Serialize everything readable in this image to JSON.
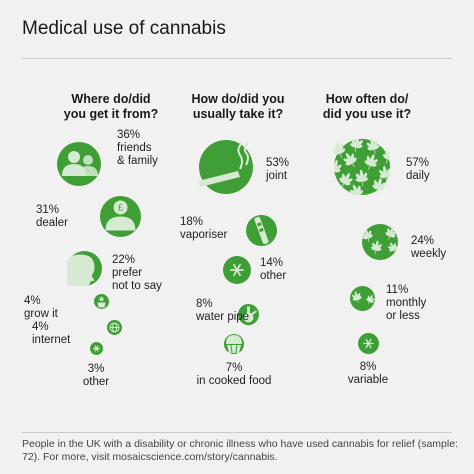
{
  "title": "Medical use of cannabis",
  "footer": "People in the UK with a disability or chronic illness who have used cannabis for relief (sample: 72). For more, visit mosaicscience.com/story/cannabis.",
  "colors": {
    "bubble": "#3f9e36",
    "icon": "#d5ead1",
    "background": "#f1f1f1"
  },
  "chart_data": [
    {
      "type": "bubble",
      "title": "Where do/did you get it from?",
      "categories": [
        "friends & family",
        "dealer",
        "prefer not to say",
        "grow it",
        "internet",
        "other"
      ],
      "values": [
        36,
        31,
        22,
        4,
        4,
        3
      ],
      "items": [
        {
          "pct": "36%",
          "label": "friends\n& family",
          "icon": "people-icon"
        },
        {
          "pct": "31%",
          "label": "dealer",
          "icon": "dealer-icon"
        },
        {
          "pct": "22%",
          "label": "prefer\nnot to say",
          "icon": "silhouette-icon"
        },
        {
          "pct": "4%",
          "label": "grow it",
          "icon": "plant-pot-icon"
        },
        {
          "pct": "4%",
          "label": "internet",
          "icon": "globe-icon"
        },
        {
          "pct": "3%",
          "label": "other",
          "icon": "star-icon"
        }
      ]
    },
    {
      "type": "bubble",
      "title": "How do/did you usually take it?",
      "categories": [
        "joint",
        "vaporiser",
        "other",
        "water pipe",
        "in cooked food"
      ],
      "values": [
        53,
        18,
        14,
        8,
        7
      ],
      "items": [
        {
          "pct": "53%",
          "label": "joint",
          "icon": "joint-icon"
        },
        {
          "pct": "18%",
          "label": "vaporiser",
          "icon": "vaporiser-icon"
        },
        {
          "pct": "14%",
          "label": "other",
          "icon": "star-icon"
        },
        {
          "pct": "8%",
          "label": "water pipe",
          "icon": "water-pipe-icon"
        },
        {
          "pct": "7%",
          "label": "in cooked food",
          "icon": "muffin-icon"
        }
      ]
    },
    {
      "type": "bubble",
      "title": "How often do/ did you use it?",
      "categories": [
        "daily",
        "weekly",
        "monthly or less",
        "variable"
      ],
      "values": [
        57,
        24,
        11,
        8
      ],
      "items": [
        {
          "pct": "57%",
          "label": "daily",
          "icon": "many-leaves-icon"
        },
        {
          "pct": "24%",
          "label": "weekly",
          "icon": "four-leaves-icon"
        },
        {
          "pct": "11%",
          "label": "monthly\nor less",
          "icon": "two-leaves-icon"
        },
        {
          "pct": "8%",
          "label": "variable",
          "icon": "star-icon"
        }
      ]
    }
  ]
}
